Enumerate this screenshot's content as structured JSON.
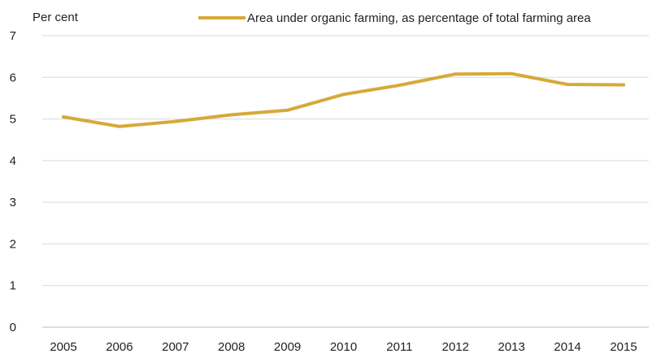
{
  "chart_data": {
    "type": "line",
    "title": "",
    "xlabel": "",
    "ylabel": "Per cent",
    "x": [
      "2005",
      "2006",
      "2007",
      "2008",
      "2009",
      "2010",
      "2011",
      "2012",
      "2013",
      "2014",
      "2015"
    ],
    "ylim": [
      0,
      7
    ],
    "yticks": [
      "0",
      "1",
      "2",
      "3",
      "4",
      "5",
      "6",
      "7"
    ],
    "grid": true,
    "legend_position": "top-right",
    "series": [
      {
        "name": "Area under organic farming, as percentage of total farming area",
        "color": "#d6a93a",
        "values": [
          5.05,
          4.82,
          4.94,
          5.1,
          5.21,
          5.59,
          5.81,
          6.08,
          6.09,
          5.83,
          5.82
        ]
      }
    ]
  }
}
